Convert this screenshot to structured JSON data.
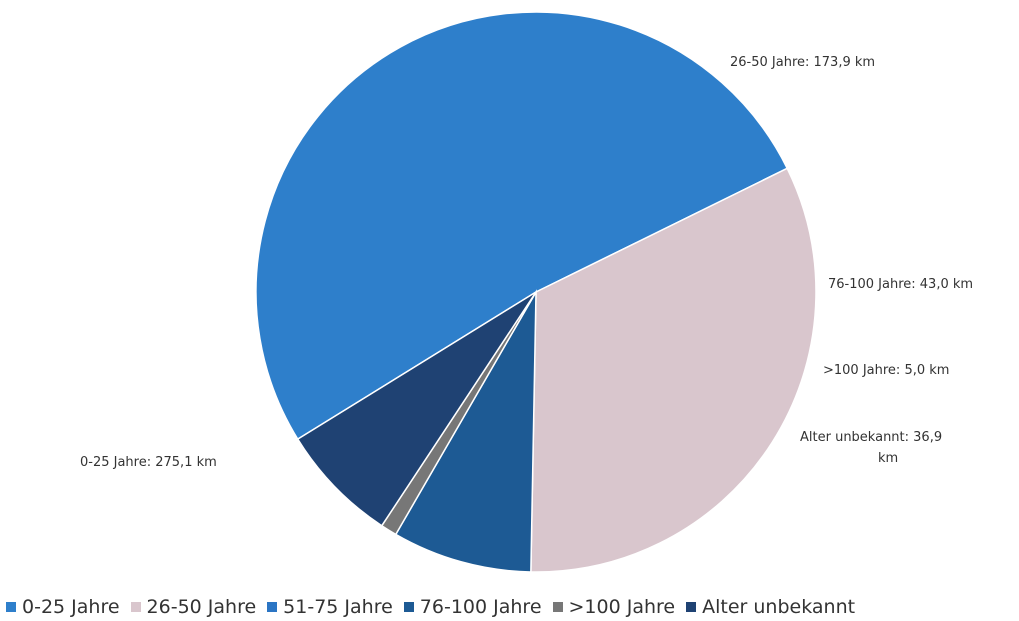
{
  "chart_data": {
    "type": "pie",
    "unit": "km",
    "slices": [
      {
        "name": "0-25 Jahre",
        "value": 275.1,
        "color": "#2E7FCB",
        "label": "0-25 Jahre: 275,1 km"
      },
      {
        "name": "26-50 Jahre",
        "value": 173.9,
        "color": "#D9C6CD",
        "label": "26-50 Jahre: 173,9 km"
      },
      {
        "name": "51-75 Jahre",
        "value": 0,
        "color": "#2B75C4",
        "label": ""
      },
      {
        "name": "76-100 Jahre",
        "value": 43.0,
        "color": "#1D5A94",
        "label": "76-100 Jahre:  43,0 km"
      },
      {
        "name": ">100 Jahre",
        "value": 5.0,
        "color": "#777777",
        "label": ">100 Jahre: 5,0 km"
      },
      {
        "name": "Alter unbekannt",
        "value": 36.9,
        "color": "#1F4273",
        "label": "Alter unbekannt: 36,9 km",
        "label_lines": [
          "Alter unbekannt: 36,9",
          "km"
        ]
      }
    ],
    "legend": {
      "position": "bottom",
      "entries": [
        "0-25 Jahre",
        "26-50 Jahre",
        "51-75 Jahre",
        "76-100 Jahre",
        ">100 Jahre",
        "Alter unbekannt"
      ]
    }
  }
}
